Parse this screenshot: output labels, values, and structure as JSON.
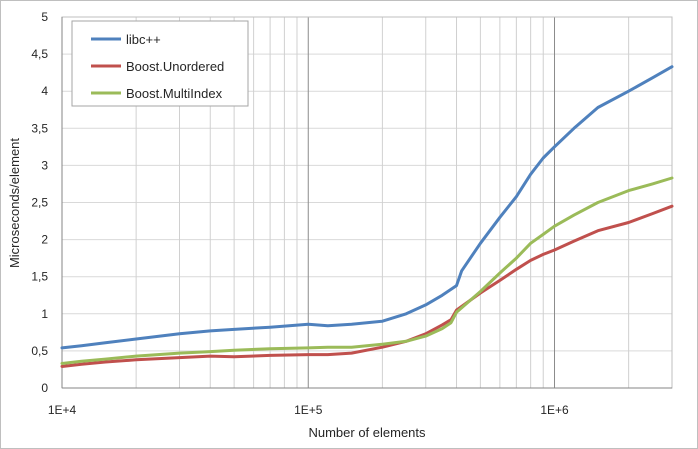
{
  "chart_data": {
    "type": "line",
    "title": "",
    "xlabel": "Number of elements",
    "ylabel": "Microseconds/element",
    "x_scale": "log",
    "xlim": [
      10000,
      3000000
    ],
    "ylim": [
      0,
      5
    ],
    "grid": true,
    "legend_position": "top-left",
    "x_tick_labels": [
      "1E+4",
      "1E+5",
      "1E+6"
    ],
    "y_tick_labels": [
      "0",
      "0,5",
      "1",
      "1,5",
      "2",
      "2,5",
      "3",
      "3,5",
      "4",
      "4,5",
      "5"
    ],
    "series": [
      {
        "name": "libc++",
        "color": "#4f81bd",
        "x": [
          10000,
          12000,
          15000,
          20000,
          30000,
          40000,
          50000,
          70000,
          100000,
          120000,
          150000,
          200000,
          250000,
          300000,
          350000,
          400000,
          420000,
          500000,
          600000,
          700000,
          800000,
          900000,
          1000000,
          1200000,
          1500000,
          2000000,
          2500000,
          3000000
        ],
        "values": [
          0.54,
          0.57,
          0.61,
          0.66,
          0.73,
          0.77,
          0.79,
          0.82,
          0.86,
          0.84,
          0.86,
          0.9,
          1.0,
          1.12,
          1.25,
          1.38,
          1.58,
          1.95,
          2.3,
          2.58,
          2.88,
          3.1,
          3.25,
          3.5,
          3.78,
          4.0,
          4.18,
          4.33
        ]
      },
      {
        "name": "Boost.Unordered",
        "color": "#c0504d",
        "x": [
          10000,
          12000,
          15000,
          20000,
          30000,
          40000,
          50000,
          70000,
          100000,
          120000,
          150000,
          200000,
          250000,
          300000,
          350000,
          380000,
          400000,
          500000,
          600000,
          700000,
          800000,
          900000,
          1000000,
          1200000,
          1500000,
          2000000,
          2500000,
          3000000
        ],
        "values": [
          0.29,
          0.32,
          0.35,
          0.38,
          0.41,
          0.43,
          0.42,
          0.44,
          0.45,
          0.45,
          0.47,
          0.55,
          0.63,
          0.73,
          0.85,
          0.92,
          1.05,
          1.28,
          1.45,
          1.6,
          1.72,
          1.8,
          1.86,
          1.98,
          2.12,
          2.23,
          2.35,
          2.45
        ]
      },
      {
        "name": "Boost.MultiIndex",
        "color": "#9bbb59",
        "x": [
          10000,
          12000,
          15000,
          20000,
          30000,
          40000,
          50000,
          70000,
          100000,
          120000,
          150000,
          200000,
          250000,
          300000,
          350000,
          380000,
          400000,
          500000,
          600000,
          700000,
          800000,
          900000,
          1000000,
          1200000,
          1500000,
          2000000,
          2500000,
          3000000
        ],
        "values": [
          0.33,
          0.36,
          0.39,
          0.43,
          0.47,
          0.49,
          0.51,
          0.53,
          0.54,
          0.55,
          0.55,
          0.59,
          0.63,
          0.7,
          0.8,
          0.88,
          1.02,
          1.3,
          1.55,
          1.75,
          1.95,
          2.07,
          2.18,
          2.33,
          2.5,
          2.66,
          2.75,
          2.83
        ]
      }
    ]
  }
}
